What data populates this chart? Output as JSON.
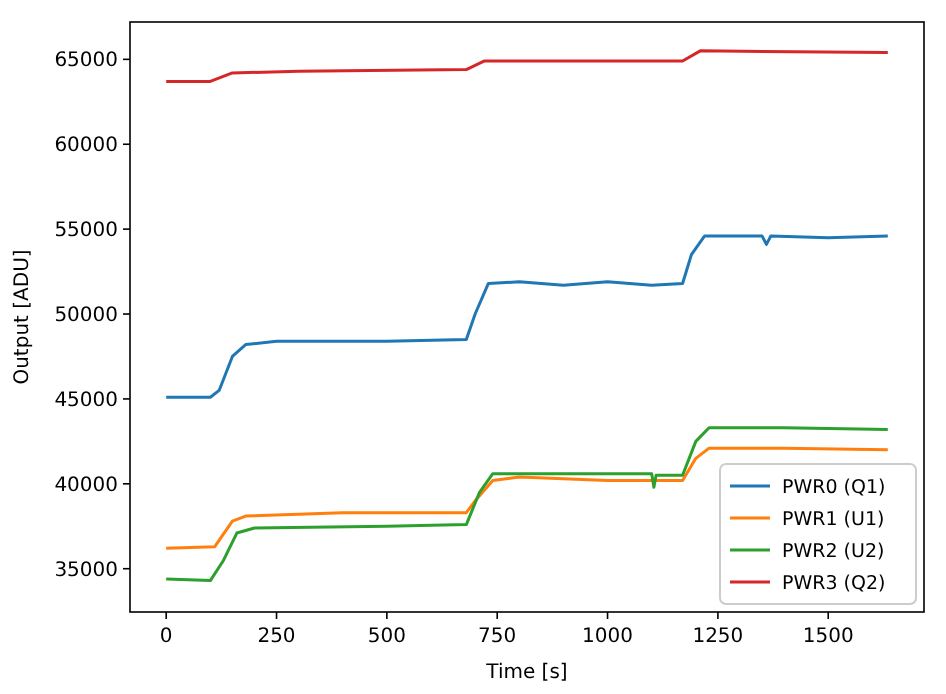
{
  "chart_data": {
    "type": "line",
    "xlabel": "Time [s]",
    "ylabel": "Output [ADU]",
    "xlim": [
      -82,
      1717
    ],
    "ylim": [
      32450,
      67200
    ],
    "xticks": [
      0,
      250,
      500,
      750,
      1000,
      1250,
      1500
    ],
    "yticks": [
      35000,
      40000,
      45000,
      50000,
      55000,
      60000,
      65000
    ],
    "legend": "bottom right",
    "grid": false,
    "series": [
      {
        "name": "PWR0 (Q1)",
        "color": "#1f77b4",
        "x": [
          0,
          100,
          120,
          150,
          180,
          250,
          500,
          680,
          700,
          730,
          800,
          900,
          1000,
          1100,
          1170,
          1190,
          1220,
          1350,
          1360,
          1370,
          1500,
          1635
        ],
        "values": [
          45100,
          45100,
          45500,
          47500,
          48200,
          48400,
          48400,
          48500,
          50000,
          51800,
          51900,
          51700,
          51900,
          51700,
          51800,
          53500,
          54600,
          54600,
          54100,
          54600,
          54500,
          54600
        ]
      },
      {
        "name": "PWR1 (U1)",
        "color": "#ff7f0e",
        "x": [
          0,
          110,
          150,
          180,
          400,
          680,
          700,
          740,
          800,
          1000,
          1170,
          1200,
          1230,
          1400,
          1635
        ],
        "values": [
          36200,
          36300,
          37800,
          38100,
          38300,
          38300,
          39000,
          40200,
          40400,
          40200,
          40200,
          41500,
          42100,
          42100,
          42000
        ]
      },
      {
        "name": "PWR2 (U2)",
        "color": "#2ca02c",
        "x": [
          0,
          100,
          130,
          160,
          200,
          500,
          680,
          710,
          740,
          900,
          1100,
          1105,
          1110,
          1170,
          1200,
          1230,
          1400,
          1635
        ],
        "values": [
          34400,
          34300,
          35500,
          37100,
          37400,
          37500,
          37600,
          39500,
          40600,
          40600,
          40600,
          39800,
          40500,
          40500,
          42500,
          43300,
          43300,
          43200
        ]
      },
      {
        "name": "PWR3 (Q2)",
        "color": "#d62728",
        "x": [
          0,
          100,
          150,
          300,
          680,
          720,
          1000,
          1170,
          1210,
          1635
        ],
        "values": [
          63700,
          63700,
          64200,
          64300,
          64400,
          64900,
          64900,
          64900,
          65500,
          65400
        ]
      }
    ]
  }
}
